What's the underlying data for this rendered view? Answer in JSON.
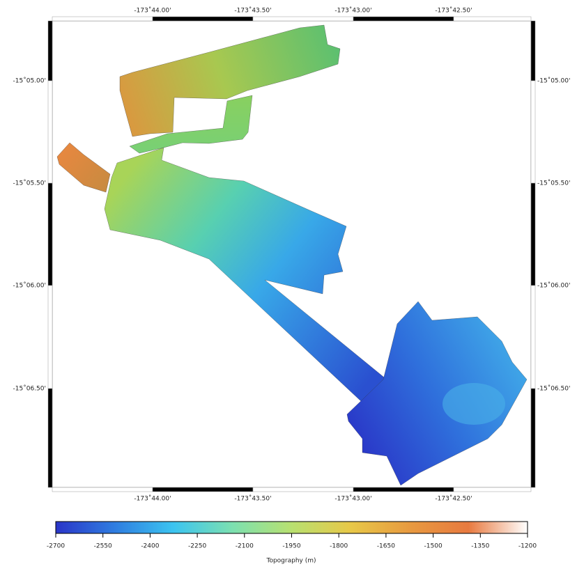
{
  "map": {
    "lon_ticks": [
      "-173˚44.00'",
      "-173˚43.50'",
      "-173˚43.00'",
      "-173˚42.50'"
    ],
    "lat_ticks": [
      "-15˚05.00'",
      "-15˚05.50'",
      "-15˚06.00'",
      "-15˚06.50'"
    ]
  },
  "colorbar": {
    "label": "Topography (m)",
    "range": [
      -2700,
      -1200
    ],
    "ticks": [
      -2700,
      -2550,
      -2400,
      -2250,
      -2100,
      -1950,
      -1800,
      -1650,
      -1500,
      -1350,
      -1200
    ],
    "colors": [
      "#2a35c8",
      "#2f7de0",
      "#3cc4f0",
      "#7ce0b0",
      "#b8e070",
      "#e8c848",
      "#e89a40",
      "#e87a40",
      "#ffffff"
    ]
  }
}
